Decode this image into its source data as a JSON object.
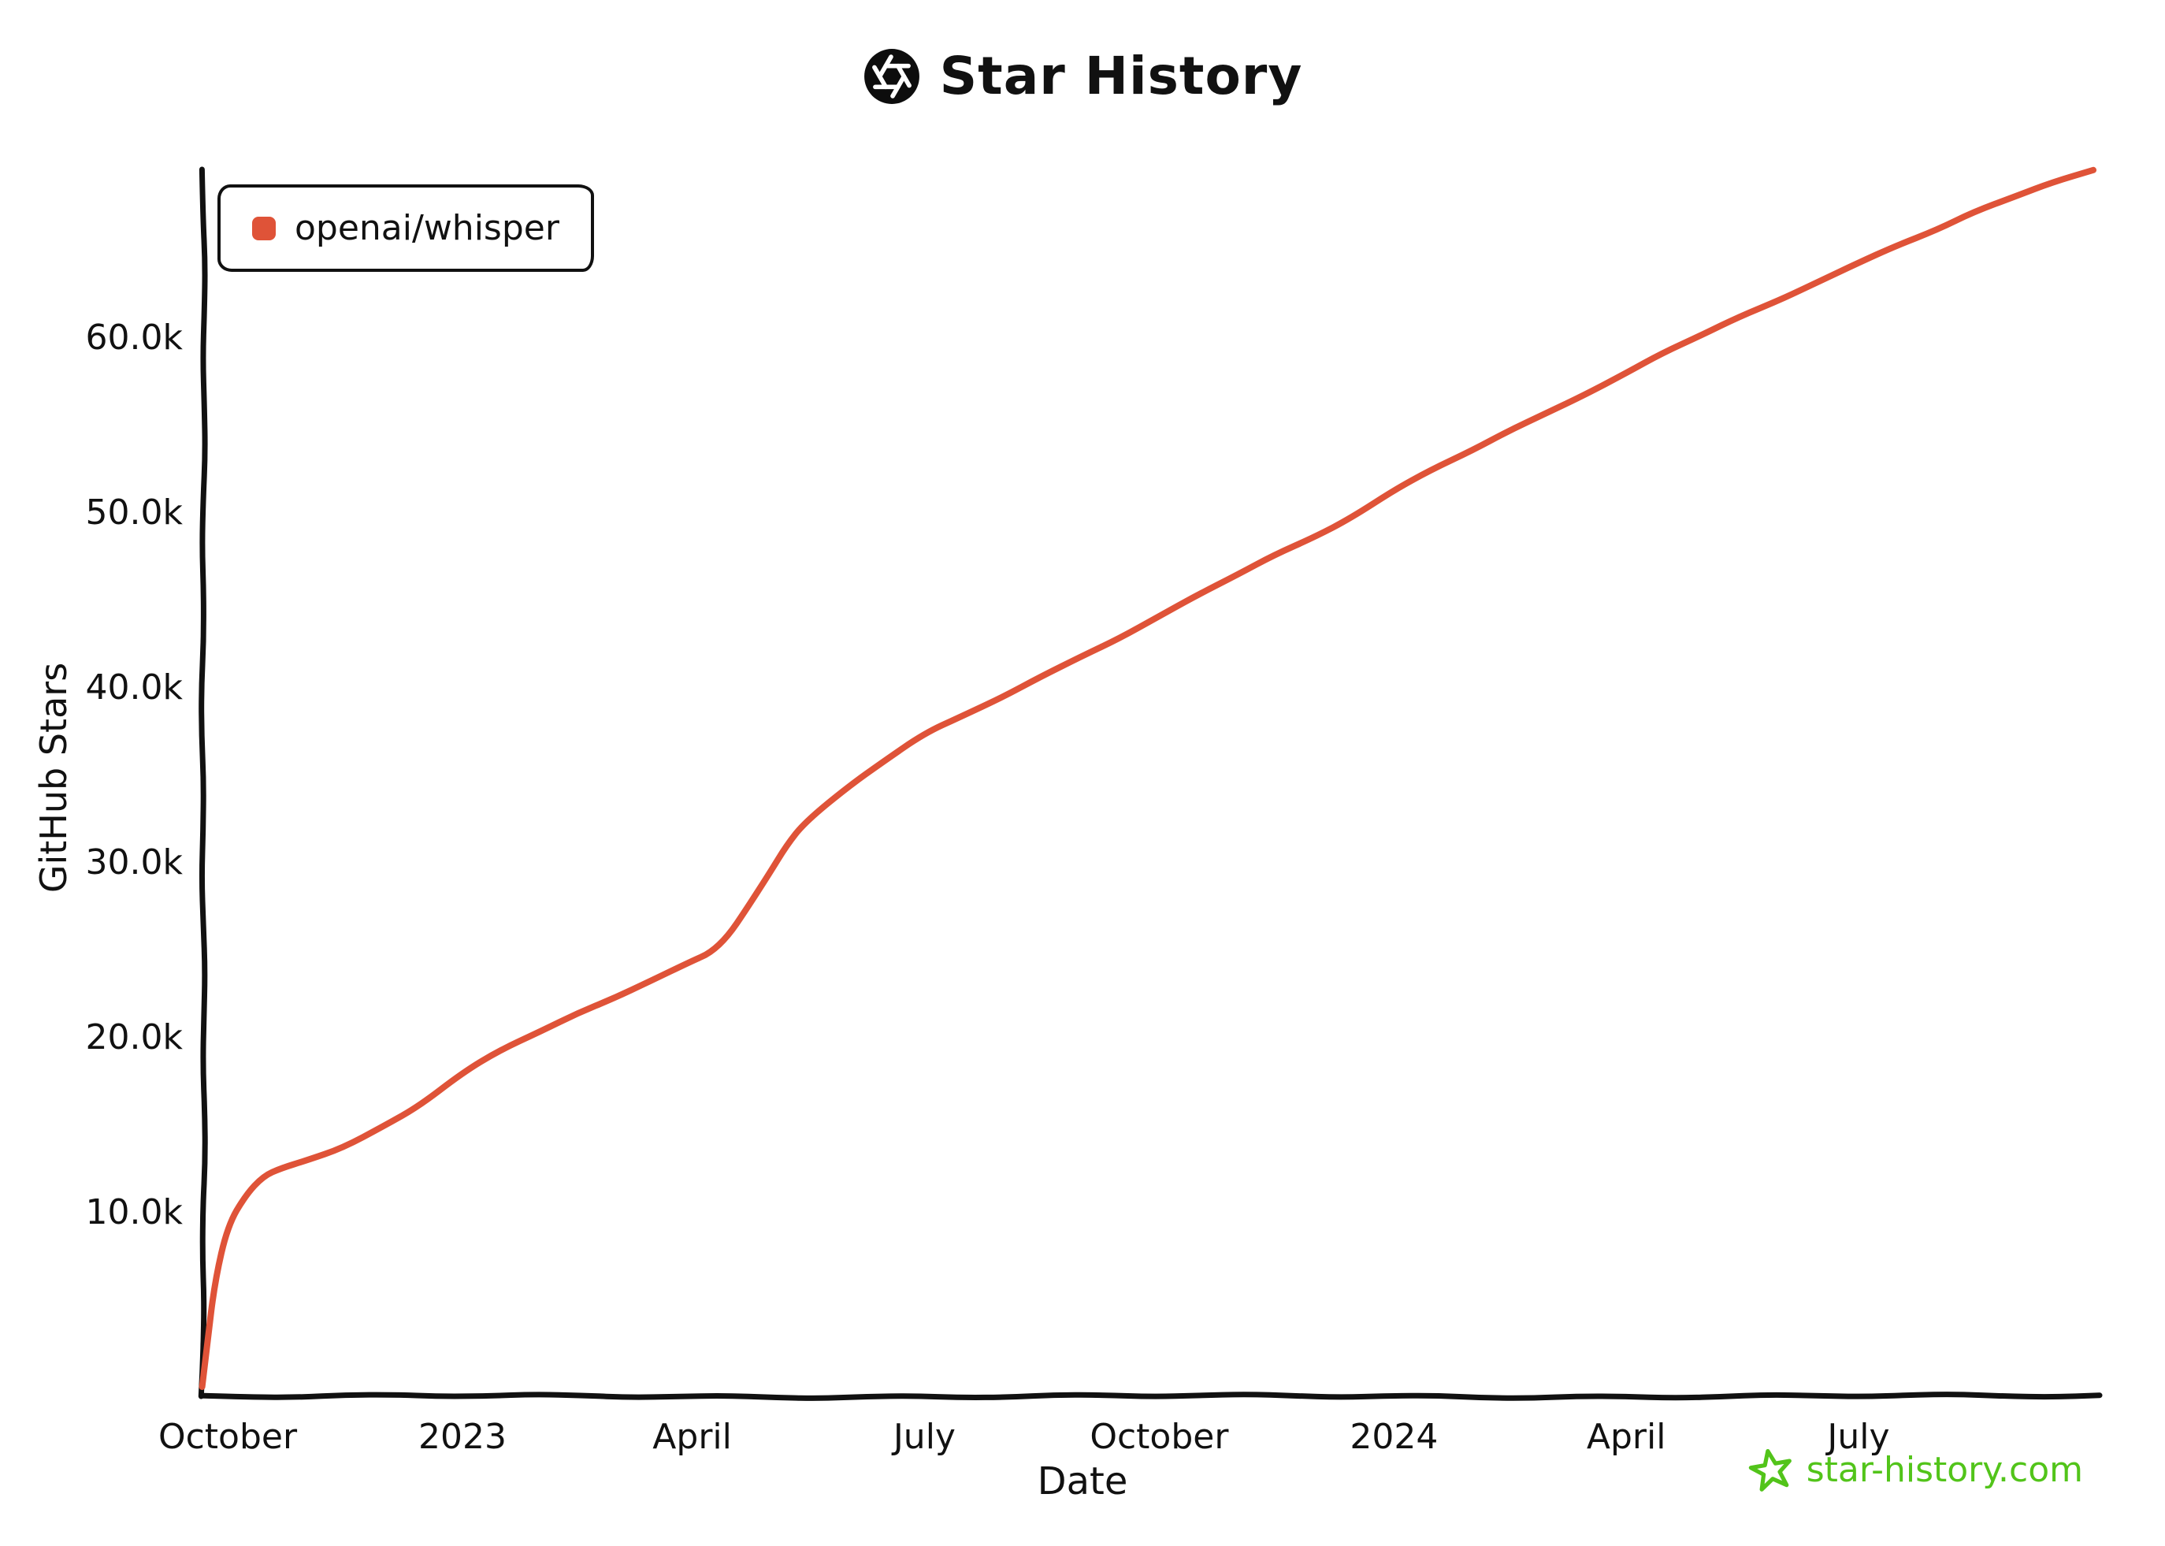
{
  "header": {
    "title": "Star History",
    "logo_icon": "openai-logo-icon"
  },
  "legend": {
    "items": [
      {
        "label": "openai/whisper",
        "color": "#DF5338"
      }
    ]
  },
  "footer": {
    "site": "star-history.com",
    "color": "#52c41a",
    "icon": "star-icon"
  },
  "chart_data": {
    "type": "line",
    "title": "Star History",
    "xlabel": "Date",
    "ylabel": "GitHub Stars",
    "grid": false,
    "legend_position": "top-left",
    "ylim": [
      0,
      70000
    ],
    "x_range": [
      "2022-09-21",
      "2024-10-01"
    ],
    "x_ticks": [
      {
        "label": "October",
        "date": "2022-10-01"
      },
      {
        "label": "2023",
        "date": "2023-01-01"
      },
      {
        "label": "April",
        "date": "2023-04-01"
      },
      {
        "label": "July",
        "date": "2023-07-01"
      },
      {
        "label": "October",
        "date": "2023-10-01"
      },
      {
        "label": "2024",
        "date": "2024-01-01"
      },
      {
        "label": "April",
        "date": "2024-04-01"
      },
      {
        "label": "July",
        "date": "2024-07-01"
      }
    ],
    "y_ticks": [
      {
        "label": "10.0k",
        "value": 10000
      },
      {
        "label": "20.0k",
        "value": 20000
      },
      {
        "label": "30.0k",
        "value": 30000
      },
      {
        "label": "40.0k",
        "value": 40000
      },
      {
        "label": "50.0k",
        "value": 50000
      },
      {
        "label": "60.0k",
        "value": 60000
      }
    ],
    "series": [
      {
        "name": "openai/whisper",
        "color": "#DF5338",
        "points": [
          [
            "2022-09-21",
            0
          ],
          [
            "2022-09-23",
            2500
          ],
          [
            "2022-09-26",
            6000
          ],
          [
            "2022-10-01",
            9200
          ],
          [
            "2022-10-08",
            11000
          ],
          [
            "2022-10-15",
            12000
          ],
          [
            "2022-10-22",
            12500
          ],
          [
            "2022-11-01",
            13000
          ],
          [
            "2022-11-15",
            13600
          ],
          [
            "2022-12-01",
            14900
          ],
          [
            "2022-12-15",
            16100
          ],
          [
            "2023-01-01",
            17900
          ],
          [
            "2023-01-15",
            19200
          ],
          [
            "2023-02-01",
            20400
          ],
          [
            "2023-02-15",
            21300
          ],
          [
            "2023-03-01",
            22200
          ],
          [
            "2023-03-15",
            23200
          ],
          [
            "2023-04-01",
            24300
          ],
          [
            "2023-04-08",
            24800
          ],
          [
            "2023-04-15",
            25800
          ],
          [
            "2023-04-22",
            27200
          ],
          [
            "2023-05-01",
            29300
          ],
          [
            "2023-05-08",
            31000
          ],
          [
            "2023-05-15",
            32200
          ],
          [
            "2023-06-01",
            34300
          ],
          [
            "2023-06-15",
            35800
          ],
          [
            "2023-07-01",
            37300
          ],
          [
            "2023-07-15",
            38300
          ],
          [
            "2023-08-01",
            39500
          ],
          [
            "2023-08-15",
            40500
          ],
          [
            "2023-09-01",
            41800
          ],
          [
            "2023-09-15",
            42800
          ],
          [
            "2023-10-01",
            44000
          ],
          [
            "2023-10-15",
            45200
          ],
          [
            "2023-11-01",
            46500
          ],
          [
            "2023-11-15",
            47500
          ],
          [
            "2023-12-01",
            48600
          ],
          [
            "2023-12-15",
            49700
          ],
          [
            "2024-01-01",
            51200
          ],
          [
            "2024-01-15",
            52400
          ],
          [
            "2024-02-01",
            53600
          ],
          [
            "2024-02-15",
            54600
          ],
          [
            "2024-03-01",
            55700
          ],
          [
            "2024-03-15",
            56700
          ],
          [
            "2024-04-01",
            57900
          ],
          [
            "2024-04-15",
            59100
          ],
          [
            "2024-05-01",
            60200
          ],
          [
            "2024-05-15",
            61100
          ],
          [
            "2024-06-01",
            62200
          ],
          [
            "2024-06-15",
            63200
          ],
          [
            "2024-07-01",
            64200
          ],
          [
            "2024-07-15",
            65200
          ],
          [
            "2024-08-01",
            66200
          ],
          [
            "2024-08-15",
            67100
          ],
          [
            "2024-09-01",
            68100
          ],
          [
            "2024-09-15",
            68900
          ],
          [
            "2024-10-01",
            69500
          ]
        ]
      }
    ]
  }
}
